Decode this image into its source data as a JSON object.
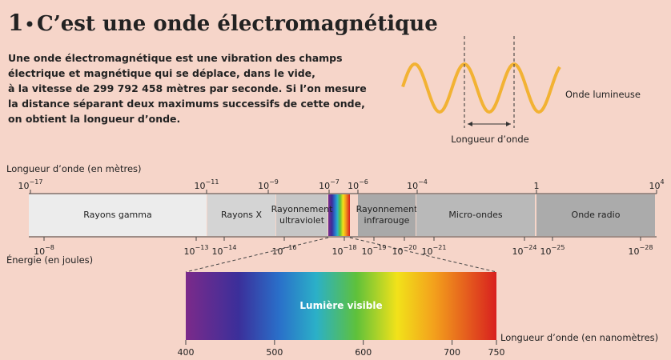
{
  "title": {
    "number": "1",
    "text": "C’est une onde électromagnétique"
  },
  "intro": [
    "Une onde électromagnétique est une vibration des champs",
    "électrique et magnétique qui se déplace, dans le vide,",
    "à la vitesse de 299 792 458 mètres par seconde. Si l’on mesure",
    "la distance séparant deux maximums successifs de cette onde,",
    "on obtient la longueur d’onde."
  ],
  "wave": {
    "label": "Onde lumineuse",
    "wavelength_label": "Longueur d’onde"
  },
  "spectrum": {
    "wavelength_axis_label": "Longueur d’onde (en mètres)",
    "energy_axis_label": "Énergie (en joules)",
    "wavelength_ticks": [
      {
        "base": "10",
        "exp": "−17"
      },
      {
        "base": "10",
        "exp": "−11"
      },
      {
        "base": "10",
        "exp": "−9"
      },
      {
        "base": "10",
        "exp": "−7"
      },
      {
        "base": "10",
        "exp": "−6"
      },
      {
        "base": "10",
        "exp": "−4"
      },
      {
        "base": "1"
      },
      {
        "base": "10",
        "exp": "4"
      }
    ],
    "energy_ticks": [
      {
        "base": "10",
        "exp": "−8"
      },
      {
        "base": "10",
        "exp": "−13"
      },
      {
        "base": "10",
        "exp": "−14"
      },
      {
        "base": "10",
        "exp": "−16"
      },
      {
        "base": "10",
        "exp": "−18"
      },
      {
        "base": "10",
        "exp": "−19"
      },
      {
        "base": "10",
        "exp": "−20"
      },
      {
        "base": "10",
        "exp": "−21"
      },
      {
        "base": "10",
        "exp": "−24"
      },
      {
        "base": "10",
        "exp": "−25"
      },
      {
        "base": "10",
        "exp": "−28"
      }
    ],
    "bands": [
      {
        "label": [
          "Rayons gamma"
        ]
      },
      {
        "label": [
          "Rayons X"
        ]
      },
      {
        "label": [
          "Rayonnement",
          "ultraviolet"
        ]
      },
      {
        "label": [
          "Rayonnement",
          "infrarouge"
        ]
      },
      {
        "label": [
          "Micro-ondes"
        ]
      },
      {
        "label": [
          "Onde radio"
        ]
      }
    ]
  },
  "visible": {
    "label": "Lumière visible",
    "axis_label": "Longueur d’onde (en nanomètres)",
    "ticks": [
      400,
      500,
      600,
      700,
      750
    ],
    "range": [
      400,
      750
    ]
  }
}
